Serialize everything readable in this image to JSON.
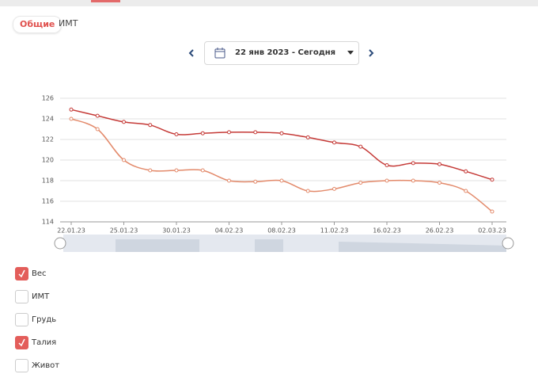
{
  "tabs": [
    "Общие",
    "ИМТ"
  ],
  "date_range": "22 янв 2023 - Сегодня",
  "chart_data": {
    "type": "line",
    "categories": [
      "22.01.23",
      null,
      "25.01.23",
      null,
      "30.01.23",
      null,
      "04.02.23",
      null,
      "08.02.23",
      null,
      "11.02.23",
      null,
      "16.02.23",
      null,
      "26.02.23",
      null,
      "02.03.23"
    ],
    "series": [
      {
        "color": "#c53a37",
        "values": [
          124.9,
          124.3,
          123.7,
          123.4,
          122.5,
          122.6,
          122.7,
          122.7,
          122.6,
          122.2,
          121.7,
          121.3,
          119.5,
          119.7,
          119.6,
          118.9,
          118.1
        ]
      },
      {
        "color": "#e38a6b",
        "values": [
          124,
          123,
          120,
          119,
          119,
          119,
          118,
          117.9,
          118,
          117,
          117.2,
          117.8,
          118,
          118,
          117.8,
          117,
          115
        ]
      }
    ],
    "ylim": [
      114,
      126
    ],
    "yticks": [
      114,
      116,
      118,
      120,
      122,
      124,
      126
    ],
    "grid": true
  },
  "checkboxes": [
    {
      "label": "Вес",
      "checked": true
    },
    {
      "label": "ИМТ",
      "checked": false
    },
    {
      "label": "Грудь",
      "checked": false
    },
    {
      "label": "Талия",
      "checked": true
    },
    {
      "label": "Живот",
      "checked": false
    }
  ]
}
